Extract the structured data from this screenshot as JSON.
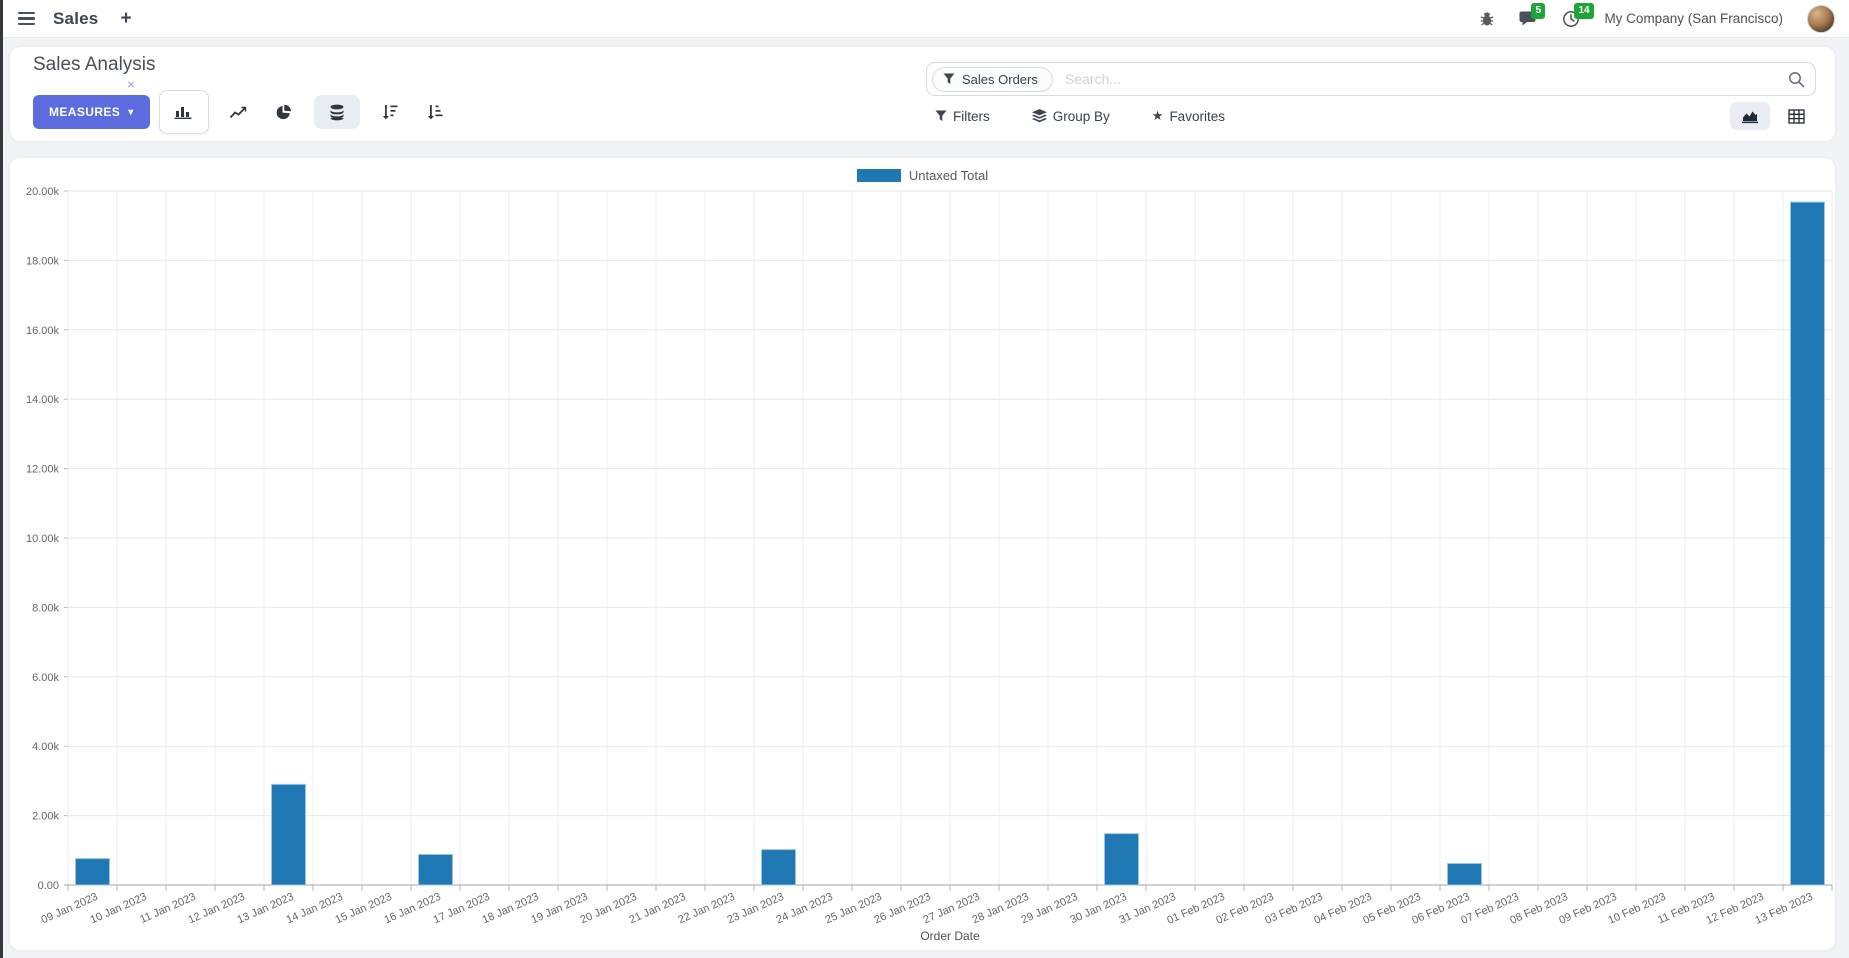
{
  "colors": {
    "accent": "#5c6bdd",
    "bar": "#1f77b4",
    "badge_green": "#1fa439"
  },
  "icons": {
    "hamburger": "menu-bars",
    "plus": "+",
    "caret_down": "▾",
    "close": "×",
    "star": "★",
    "bug": "debug-icon",
    "chat": "messages-icon",
    "clock": "activities-icon",
    "magnifier": "search-icon",
    "funnel": "filter-icon",
    "layers": "group-by-icon",
    "bar_chart": "bar-chart-icon",
    "line_chart": "line-chart-icon",
    "pie_chart": "pie-chart-icon",
    "stacked": "stacked-icon",
    "sort_desc": "sort-descending-icon",
    "sort_asc": "sort-ascending-icon",
    "area_chart": "graph-view-icon",
    "pivot": "pivot-view-icon"
  },
  "navbar": {
    "app_name": "Sales",
    "company": "My Company (San Francisco)",
    "message_badge": "5",
    "activity_badge": "14"
  },
  "control_panel": {
    "title": "Sales Analysis",
    "measures_label": "MEASURES",
    "search": {
      "facet": "Sales Orders",
      "placeholder": "Search..."
    },
    "buttons": {
      "filters": "Filters",
      "group_by": "Group By",
      "favorites": "Favorites"
    }
  },
  "chart_data": {
    "type": "bar",
    "title": "",
    "xlabel": "Order Date",
    "ylabel": "",
    "ylim": [
      0,
      20000
    ],
    "ytick_step": 2000,
    "ytick_format": "thousands-k",
    "grid": true,
    "legend_position": "top-center",
    "categories": [
      "09 Jan 2023",
      "10 Jan 2023",
      "11 Jan 2023",
      "12 Jan 2023",
      "13 Jan 2023",
      "14 Jan 2023",
      "15 Jan 2023",
      "16 Jan 2023",
      "17 Jan 2023",
      "18 Jan 2023",
      "19 Jan 2023",
      "20 Jan 2023",
      "21 Jan 2023",
      "22 Jan 2023",
      "23 Jan 2023",
      "24 Jan 2023",
      "25 Jan 2023",
      "26 Jan 2023",
      "27 Jan 2023",
      "28 Jan 2023",
      "29 Jan 2023",
      "30 Jan 2023",
      "31 Jan 2023",
      "01 Feb 2023",
      "02 Feb 2023",
      "03 Feb 2023",
      "04 Feb 2023",
      "05 Feb 2023",
      "06 Feb 2023",
      "07 Feb 2023",
      "08 Feb 2023",
      "09 Feb 2023",
      "10 Feb 2023",
      "11 Feb 2023",
      "12 Feb 2023",
      "13 Feb 2023"
    ],
    "series": [
      {
        "name": "Untaxed Total",
        "color": "#1f77b4",
        "values": [
          760,
          0,
          0,
          0,
          2900,
          0,
          0,
          880,
          0,
          0,
          0,
          0,
          0,
          0,
          1020,
          0,
          0,
          0,
          0,
          0,
          0,
          1480,
          0,
          0,
          0,
          0,
          0,
          0,
          620,
          0,
          0,
          0,
          0,
          0,
          0,
          19680
        ]
      }
    ]
  }
}
